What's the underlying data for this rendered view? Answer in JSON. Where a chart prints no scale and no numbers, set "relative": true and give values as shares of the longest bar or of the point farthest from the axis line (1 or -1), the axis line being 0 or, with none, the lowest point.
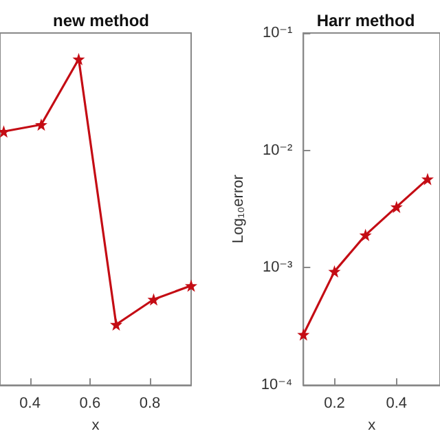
{
  "chart_data": [
    {
      "type": "line",
      "title": "new method",
      "xlabel": "x",
      "relative": true,
      "x": [
        0.3125,
        0.4375,
        0.5625,
        0.6875,
        0.8125,
        0.9375
      ],
      "xlim": [
        0.3,
        0.9375
      ],
      "xticks": [
        0.4,
        0.6,
        0.8
      ],
      "series": [
        {
          "color": "#c40c14",
          "values": [
            0.778,
            0.799,
            1,
            0.186,
            0.263,
            0.305
          ]
        }
      ],
      "marker": "star",
      "grid": false
    },
    {
      "type": "line",
      "title": "Harr method",
      "xlabel": "x",
      "ylabel": "Log₁₀error",
      "log": true,
      "x": [
        0.1,
        0.2,
        0.3,
        0.4,
        0.5
      ],
      "xlim": [
        0.1,
        0.54
      ],
      "xticks": [
        0.2,
        0.4
      ],
      "ylim": [
        0.0001,
        0.1
      ],
      "yticks": [
        {
          "value": 0.0001,
          "label": "10⁻⁴"
        },
        {
          "value": 0.001,
          "label": "10⁻³"
        },
        {
          "value": 0.01,
          "label": "10⁻²"
        },
        {
          "value": 0.1,
          "label": "10⁻¹"
        }
      ],
      "series": [
        {
          "color": "#c40c14",
          "values": [
            0.00027,
            0.00093,
            0.0019,
            0.0033,
            0.0057
          ]
        }
      ],
      "marker": "star",
      "grid": false
    }
  ]
}
